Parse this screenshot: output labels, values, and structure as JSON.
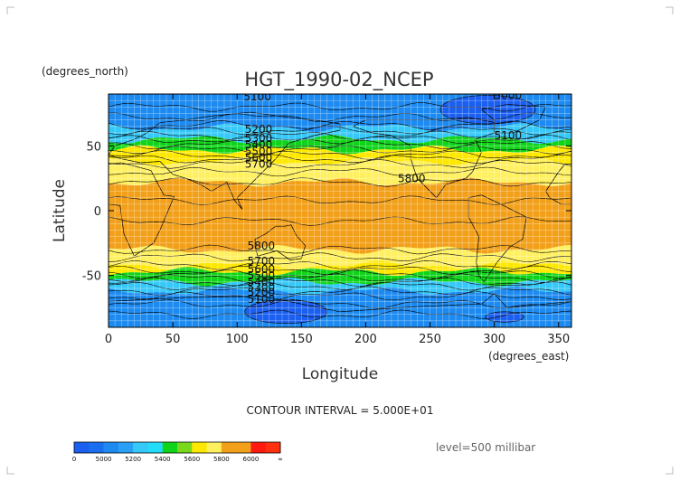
{
  "chart_data": {
    "type": "heatmap",
    "title": "HGT_1990-02_NCEP",
    "xlabel": "Longitude",
    "ylabel": "Latitude",
    "x_units": "(degrees_east)",
    "y_units": "(degrees_north)",
    "xlim": [
      0,
      360
    ],
    "ylim": [
      -90,
      90
    ],
    "x_ticks": [
      0,
      50,
      100,
      150,
      200,
      250,
      300,
      350
    ],
    "y_ticks": [
      -50,
      0,
      50
    ],
    "grid": true,
    "contour_interval_text": "CONTOUR INTERVAL = 5.000E+01",
    "level_text": "level=500 millibar",
    "colorbar": {
      "boundaries": [
        0,
        5000,
        5200,
        5400,
        5600,
        5800,
        6000,
        "∞"
      ],
      "colors": [
        "#1a5ff0",
        "#1c8af0",
        "#22ddfa",
        "#10d41a",
        "#ffe800",
        "#f2a01a",
        "#ff1a10"
      ],
      "sub_colors": [
        "#1a5ff0",
        "#1a6ff0",
        "#1c8af0",
        "#2aa0f4",
        "#36c8f8",
        "#22ddfa",
        "#10d41a",
        "#7ad81c",
        "#ffe800",
        "#fff060",
        "#f2a01a",
        "#f2a01a",
        "#ff1a10",
        "#ff3010"
      ],
      "labels": [
        "0",
        "5000",
        "5200",
        "5400",
        "5600",
        "5800",
        "6000",
        "∞"
      ]
    },
    "bands": [
      {
        "lat_from": 90,
        "lat_to": 64,
        "color": "#1c8af0"
      },
      {
        "lat_from": 64,
        "lat_to": 55,
        "color": "#36c8f8"
      },
      {
        "lat_from": 55,
        "lat_to": 47,
        "color": "#10d41a"
      },
      {
        "lat_from": 47,
        "lat_to": 38,
        "color": "#ffe800"
      },
      {
        "lat_from": 38,
        "lat_to": 22,
        "color": "#fff060"
      },
      {
        "lat_from": 22,
        "lat_to": -30,
        "color": "#f2a01a"
      },
      {
        "lat_from": -30,
        "lat_to": -42,
        "color": "#fff060"
      },
      {
        "lat_from": -42,
        "lat_to": -47,
        "color": "#ffe800"
      },
      {
        "lat_from": -47,
        "lat_to": -55,
        "color": "#10d41a"
      },
      {
        "lat_from": -55,
        "lat_to": -62,
        "color": "#36c8f8"
      },
      {
        "lat_from": -62,
        "lat_to": -90,
        "color": "#1c8af0"
      }
    ],
    "low_regions": [
      {
        "lon": 295,
        "lat": 78,
        "rlon": 37,
        "rlat": 11,
        "color": "#1a5ff0"
      },
      {
        "lon": 138,
        "lat": -78,
        "rlon": 32,
        "rlat": 9,
        "color": "#1a5ff0"
      },
      {
        "lon": 308,
        "lat": -82,
        "rlon": 15,
        "rlat": 4,
        "color": "#1a5ff0"
      }
    ],
    "contour_labels": [
      {
        "text": "5000",
        "lon": 300,
        "lat": 86
      },
      {
        "text": "5100",
        "lon": 105,
        "lat": 85
      },
      {
        "text": "5100",
        "lon": 300,
        "lat": 55
      },
      {
        "text": "5200",
        "lon": 106,
        "lat": 60
      },
      {
        "text": "5300",
        "lon": 106,
        "lat": 53
      },
      {
        "text": "5400",
        "lon": 106,
        "lat": 48
      },
      {
        "text": "5500",
        "lon": 106,
        "lat": 43
      },
      {
        "text": "5600",
        "lon": 106,
        "lat": 38
      },
      {
        "text": "5700",
        "lon": 106,
        "lat": 33
      },
      {
        "text": "5800",
        "lon": 225,
        "lat": 22
      },
      {
        "text": "5800",
        "lon": 108,
        "lat": -30
      },
      {
        "text": "5700",
        "lon": 108,
        "lat": -42
      },
      {
        "text": "5600",
        "lon": 108,
        "lat": -48
      },
      {
        "text": "5500",
        "lon": 108,
        "lat": -53
      },
      {
        "text": "5400",
        "lon": 108,
        "lat": -58
      },
      {
        "text": "5300",
        "lon": 108,
        "lat": -62
      },
      {
        "text": "5200",
        "lon": 108,
        "lat": -66
      },
      {
        "text": "5100",
        "lon": 108,
        "lat": -71
      }
    ]
  }
}
